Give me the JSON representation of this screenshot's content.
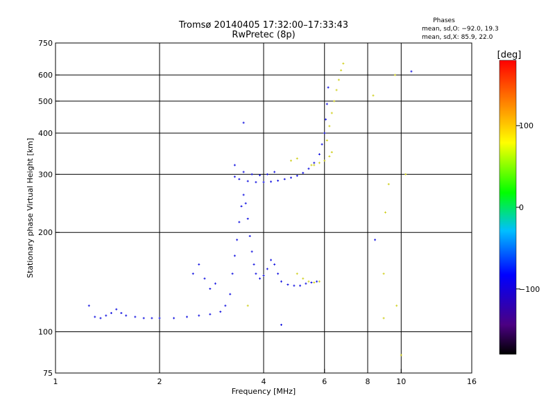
{
  "chart_data": {
    "type": "scatter",
    "title": "Tromsø 20140405 17:32:00–17:33:43",
    "subtitle": "RwPretec (8p)",
    "xlabel": "Frequency [MHz]",
    "ylabel": "Stationary phase Virtual Height [km]",
    "x_scale": "log",
    "y_scale": "log",
    "xlim": [
      1,
      16
    ],
    "ylim": [
      75,
      750
    ],
    "x_ticks": [
      1,
      2,
      4,
      6,
      8,
      10,
      16
    ],
    "x_tick_labels": [
      "1",
      "2",
      "4",
      "6",
      "8",
      "10",
      "16"
    ],
    "y_ticks": [
      75,
      100,
      200,
      300,
      400,
      500,
      600,
      750
    ],
    "y_tick_labels": [
      "75",
      "100",
      "200",
      "300",
      "400",
      "500",
      "600",
      "750"
    ],
    "grid": true,
    "stats": {
      "header": "Phases",
      "line_o": "mean, sd,O: −92.0, 19.3",
      "line_x": "mean, sd,X:  85.9, 22.0"
    },
    "colorbar": {
      "label": "[deg]",
      "ticks": [
        100,
        0,
        -100
      ],
      "tick_labels": [
        "100",
        "0",
        "−100"
      ],
      "range": [
        -180,
        180
      ],
      "colors": [
        "#000000",
        "#4b0082",
        "#0000ff",
        "#00bfff",
        "#00ff00",
        "#ffff00",
        "#ff7f00",
        "#ff0000"
      ]
    },
    "series": [
      {
        "values": [
          [
            1.3,
            111
          ],
          [
            1.35,
            110
          ],
          [
            1.4,
            112
          ],
          [
            1.45,
            114
          ],
          [
            1.5,
            117
          ],
          [
            1.55,
            114
          ],
          [
            1.6,
            112
          ],
          [
            1.7,
            111
          ],
          [
            1.8,
            110
          ],
          [
            1.9,
            110
          ],
          [
            2.0,
            110
          ],
          [
            2.2,
            110
          ],
          [
            2.4,
            111
          ],
          [
            2.6,
            112
          ],
          [
            2.8,
            113
          ],
          [
            3.0,
            115
          ],
          [
            3.1,
            120
          ],
          [
            3.2,
            130
          ],
          [
            3.25,
            150
          ],
          [
            3.3,
            170
          ],
          [
            3.35,
            190
          ],
          [
            3.4,
            215
          ],
          [
            3.45,
            240
          ],
          [
            3.5,
            260
          ],
          [
            3.55,
            245
          ],
          [
            3.6,
            220
          ],
          [
            3.65,
            195
          ],
          [
            3.7,
            175
          ],
          [
            3.75,
            160
          ],
          [
            3.8,
            150
          ],
          [
            3.9,
            145
          ],
          [
            4.0,
            148
          ],
          [
            4.1,
            155
          ],
          [
            4.2,
            165
          ],
          [
            4.3,
            160
          ],
          [
            4.4,
            150
          ],
          [
            4.5,
            142
          ],
          [
            4.7,
            139
          ],
          [
            4.9,
            138
          ],
          [
            5.1,
            138
          ],
          [
            5.3,
            140
          ],
          [
            5.5,
            141
          ],
          [
            5.7,
            142
          ],
          [
            3.3,
            295
          ],
          [
            3.4,
            290
          ],
          [
            3.6,
            286
          ],
          [
            3.8,
            284
          ],
          [
            4.0,
            284
          ],
          [
            4.2,
            285
          ],
          [
            4.4,
            287
          ],
          [
            4.6,
            290
          ],
          [
            4.8,
            293
          ],
          [
            5.0,
            297
          ],
          [
            5.2,
            303
          ],
          [
            5.4,
            312
          ],
          [
            5.6,
            325
          ],
          [
            5.8,
            345
          ],
          [
            5.9,
            370
          ],
          [
            6.0,
            400
          ],
          [
            6.05,
            440
          ],
          [
            6.1,
            490
          ],
          [
            6.15,
            550
          ],
          [
            3.3,
            320
          ],
          [
            3.5,
            305
          ],
          [
            3.7,
            300
          ],
          [
            3.9,
            298
          ],
          [
            4.1,
            300
          ],
          [
            4.3,
            305
          ],
          [
            2.5,
            150
          ],
          [
            2.6,
            160
          ],
          [
            2.7,
            145
          ],
          [
            2.8,
            135
          ],
          [
            2.9,
            140
          ],
          [
            1.25,
            120
          ],
          [
            10.7,
            615
          ],
          [
            3.5,
            430
          ],
          [
            4.5,
            105
          ],
          [
            8.4,
            190
          ]
        ]
      },
      {
        "values": [
          [
            5.0,
            150
          ],
          [
            5.2,
            145
          ],
          [
            5.4,
            142
          ],
          [
            5.6,
            141
          ],
          [
            5.8,
            142
          ],
          [
            6.1,
            380
          ],
          [
            6.2,
            420
          ],
          [
            6.3,
            460
          ],
          [
            6.4,
            500
          ],
          [
            6.5,
            540
          ],
          [
            6.6,
            580
          ],
          [
            6.7,
            620
          ],
          [
            6.8,
            650
          ],
          [
            6.3,
            350
          ],
          [
            6.2,
            340
          ],
          [
            6.0,
            330
          ],
          [
            5.8,
            325
          ],
          [
            5.6,
            320
          ],
          [
            4.8,
            330
          ],
          [
            5.0,
            335
          ],
          [
            5.5,
            320
          ],
          [
            3.6,
            120
          ],
          [
            8.3,
            520
          ],
          [
            8.9,
            150
          ],
          [
            9.0,
            230
          ],
          [
            9.2,
            280
          ],
          [
            10.0,
            85
          ],
          [
            9.7,
            120
          ],
          [
            10.3,
            300
          ],
          [
            9.6,
            600
          ],
          [
            8.9,
            110
          ]
        ]
      }
    ]
  }
}
